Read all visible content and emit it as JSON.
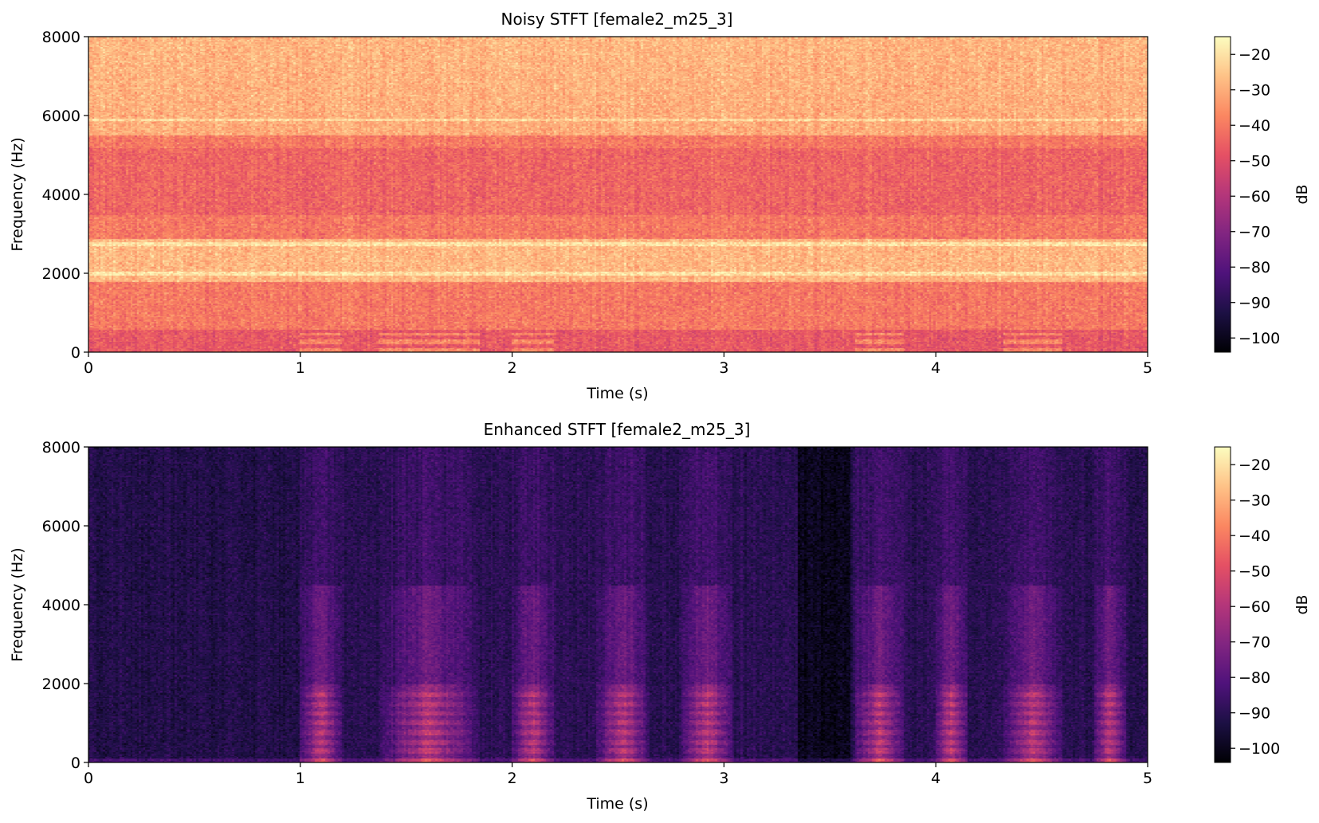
{
  "chart_data": [
    {
      "type": "heatmap",
      "title": "Noisy STFT [female2_m25_3]",
      "xlabel": "Time (s)",
      "ylabel": "Frequency (Hz)",
      "xlim": [
        0,
        5
      ],
      "ylim": [
        0,
        8000
      ],
      "xticks": [
        0,
        1,
        2,
        3,
        4,
        5
      ],
      "xtick_labels": [
        "0",
        "1",
        "2",
        "3",
        "4",
        "5"
      ],
      "yticks": [
        0,
        2000,
        4000,
        6000,
        8000
      ],
      "ytick_labels": [
        "0",
        "2000",
        "4000",
        "6000",
        "8000"
      ],
      "colormap": "magma",
      "colorbar": {
        "label": "dB",
        "range": [
          -104,
          -15
        ],
        "ticks": [
          -20,
          -30,
          -40,
          -50,
          -60,
          -70,
          -80,
          -90,
          -100
        ],
        "tick_labels": [
          "−20",
          "−30",
          "−40",
          "−50",
          "−60",
          "−70",
          "−80",
          "−90",
          "−100"
        ]
      },
      "description_levels_db": {
        "background": -40,
        "band_5500_8000_hz": -30,
        "band_2000_2900_hz": -28,
        "below_600_hz": -47
      },
      "speech_segments_s": [
        [
          1.0,
          1.2
        ],
        [
          1.37,
          1.85
        ],
        [
          2.0,
          2.2
        ],
        [
          3.62,
          3.85
        ],
        [
          4.32,
          4.6
        ]
      ]
    },
    {
      "type": "heatmap",
      "title": "Enhanced STFT [female2_m25_3]",
      "xlabel": "Time (s)",
      "ylabel": "Frequency (Hz)",
      "xlim": [
        0,
        5
      ],
      "ylim": [
        0,
        8000
      ],
      "xticks": [
        0,
        1,
        2,
        3,
        4,
        5
      ],
      "xtick_labels": [
        "0",
        "1",
        "2",
        "3",
        "4",
        "5"
      ],
      "yticks": [
        0,
        2000,
        4000,
        6000,
        8000
      ],
      "ytick_labels": [
        "0",
        "2000",
        "4000",
        "6000",
        "8000"
      ],
      "colormap": "magma",
      "colorbar": {
        "label": "dB",
        "range": [
          -104,
          -15
        ],
        "ticks": [
          -20,
          -30,
          -40,
          -50,
          -60,
          -70,
          -80,
          -90,
          -100
        ],
        "tick_labels": [
          "−20",
          "−30",
          "−40",
          "−50",
          "−60",
          "−70",
          "−80",
          "−90",
          "−100"
        ]
      },
      "description_levels_db": {
        "background": -90,
        "silence_0_to_1_s": -92,
        "silence_3_35_to_3_6_s": -100
      },
      "speech_segments_s": [
        [
          1.0,
          1.2
        ],
        [
          1.37,
          1.85
        ],
        [
          2.0,
          2.2
        ],
        [
          2.4,
          2.65
        ],
        [
          2.8,
          3.05
        ],
        [
          3.62,
          3.85
        ],
        [
          4.0,
          4.15
        ],
        [
          4.32,
          4.6
        ],
        [
          4.75,
          4.9
        ]
      ]
    }
  ]
}
